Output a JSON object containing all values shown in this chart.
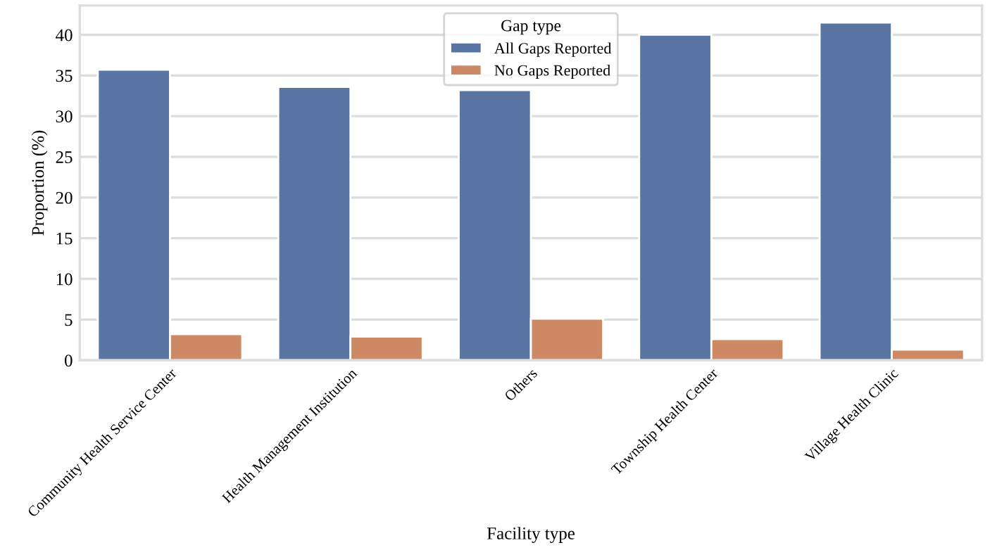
{
  "chart_data": {
    "type": "bar",
    "xlabel": "Facility type",
    "ylabel": "Proportion (%)",
    "legend_title": "Gap type",
    "categories": [
      "Community Health Service Center",
      "Health Management Institution",
      "Others",
      "Township Health Center",
      "Village Health Clinic"
    ],
    "series": [
      {
        "name": "All Gaps Reported",
        "color": "#5975a4",
        "values": [
          35.7,
          33.6,
          33.2,
          40.0,
          41.5
        ]
      },
      {
        "name": "No Gaps Reported",
        "color": "#cc8963",
        "values": [
          3.2,
          2.9,
          5.1,
          2.6,
          1.3
        ]
      }
    ],
    "ylim": [
      0,
      43.6
    ],
    "yticks": [
      0,
      5,
      10,
      15,
      20,
      25,
      30,
      35,
      40
    ],
    "grid": "y",
    "legend": "top center"
  }
}
